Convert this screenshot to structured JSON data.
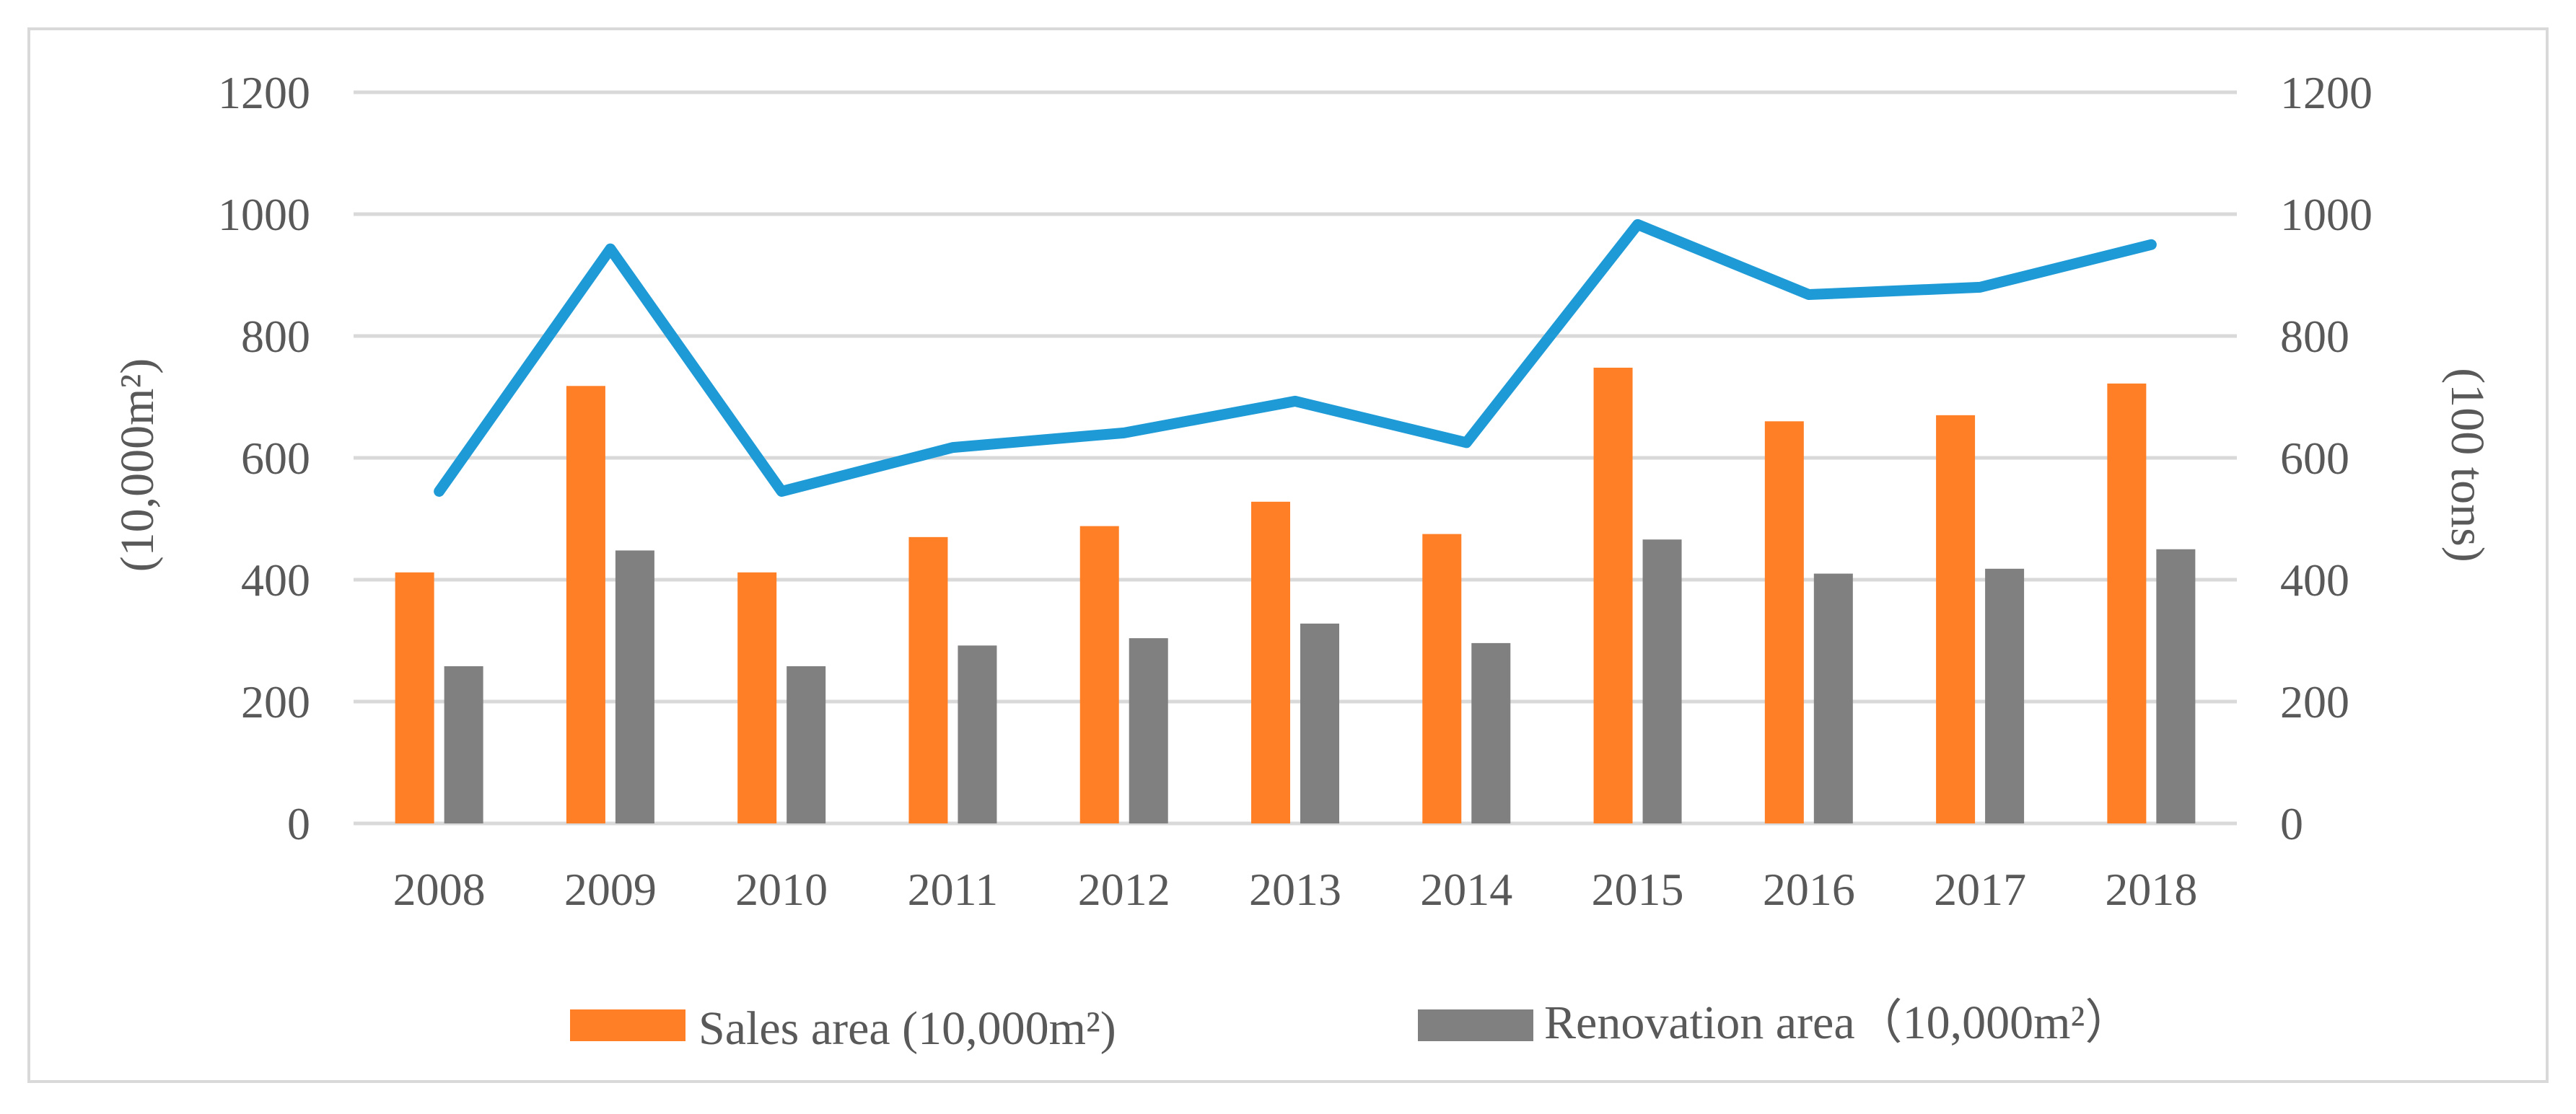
{
  "chart_data": {
    "type": "bar",
    "categories": [
      "2008",
      "2009",
      "2010",
      "2011",
      "2012",
      "2013",
      "2014",
      "2015",
      "2016",
      "2017",
      "2018"
    ],
    "series": [
      {
        "name": "Sales area (10,000m²)",
        "kind": "bar",
        "axis": "left",
        "color": "#FF7F27",
        "values": [
          412,
          718,
          412,
          470,
          488,
          528,
          475,
          748,
          660,
          670,
          722
        ]
      },
      {
        "name": "Renovation area（10,000m²）",
        "kind": "bar",
        "axis": "left",
        "color": "#808080",
        "values": [
          258,
          448,
          258,
          292,
          304,
          328,
          296,
          466,
          410,
          418,
          450
        ]
      },
      {
        "name": "",
        "kind": "line",
        "axis": "right",
        "color": "#1E9AD6",
        "values": [
          545,
          943,
          545,
          617,
          641,
          693,
          625,
          983,
          868,
          880,
          950
        ]
      }
    ],
    "ylabel": "(10,000m²)",
    "ylabel_right": "(100 tons)",
    "ylim": [
      0,
      1200
    ],
    "ylim_right": [
      0,
      1200
    ],
    "yticks": [
      "0",
      "200",
      "400",
      "600",
      "800",
      "1000",
      "1200"
    ],
    "yticks_right": [
      "0",
      "200",
      "400",
      "600",
      "800",
      "1000",
      "1200"
    ],
    "grid": true,
    "legend_position": "bottom"
  }
}
